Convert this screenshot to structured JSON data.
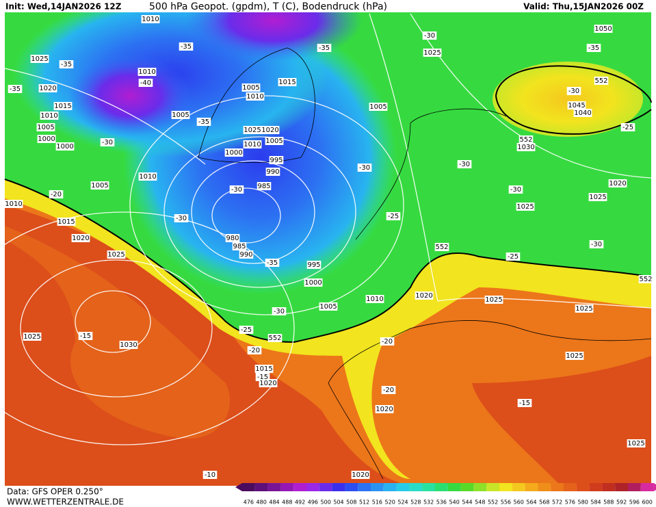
{
  "header": {
    "init": "Init: Wed,14JAN2026 12Z",
    "title": "500 hPa Geopot. (gpdm), T (C), Bodendruck (hPa)",
    "valid": "Valid: Thu,15JAN2026 00Z"
  },
  "footer": {
    "data": "Data: GFS OPER 0.250°",
    "site": "WWW.WETTERZENTRALE.DE"
  },
  "map_labels": [
    "1010",
    "1025",
    "-35",
    "1020",
    "-35",
    "1015",
    "1010",
    "1005",
    "1000",
    "1000",
    "-30",
    "1010",
    "-40",
    "1005",
    "-35",
    "-35",
    "1005",
    "1010",
    "1015",
    "1025",
    "1020",
    "1010",
    "1005",
    "1000",
    "995",
    "990",
    "985",
    "-30",
    "980",
    "985",
    "990",
    "-35",
    "995",
    "1000",
    "1005",
    "1010",
    "-30",
    "-25",
    "552",
    "-20",
    "1015",
    "-15",
    "1020",
    "1025",
    "-15",
    "1030",
    "1025",
    "1020",
    "1015",
    "1010",
    "1005",
    "1010",
    "-20",
    "-30",
    "-35",
    "1005",
    "-30",
    "-25",
    "552",
    "-30",
    "1025",
    "-30",
    "-30",
    "1025",
    "1020",
    "1025",
    "1025",
    "1025",
    "-20",
    "-20",
    "1020",
    "-15",
    "1025",
    "1020",
    "-10",
    "1050",
    "-35",
    "552",
    "-30",
    "1045",
    "1040",
    "1030",
    "552",
    "-25",
    "1020",
    "1025",
    "-30",
    "-25",
    "552"
  ],
  "legend": {
    "values": [
      476,
      480,
      484,
      488,
      492,
      496,
      500,
      504,
      508,
      512,
      516,
      520,
      524,
      528,
      532,
      536,
      540,
      544,
      548,
      552,
      556,
      560,
      564,
      568,
      572,
      576,
      580,
      584,
      588,
      592,
      596,
      600
    ],
    "colors": [
      "#4b0b5e",
      "#5e0f7a",
      "#7a1496",
      "#9618b4",
      "#b01ed2",
      "#9a28e6",
      "#6a2cea",
      "#3a30ec",
      "#2c4ef0",
      "#2c72f2",
      "#2c92f2",
      "#2ab2f0",
      "#28cce8",
      "#28dcc8",
      "#28e0a0",
      "#2ade70",
      "#36da40",
      "#5ada28",
      "#8ee028",
      "#c8e628",
      "#f2e41e",
      "#f4c81e",
      "#f4aa1c",
      "#f08e1a",
      "#ec761a",
      "#e4621a",
      "#dc4e1a",
      "#d03c1c",
      "#c02e20",
      "#ae2228",
      "#b01e60",
      "#d82aa0"
    ]
  }
}
